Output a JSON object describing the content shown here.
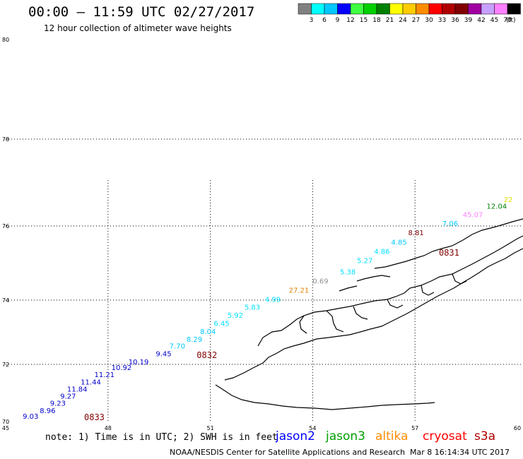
{
  "header": {
    "title": "00:00 – 11:59 UTC 02/27/2017",
    "subtitle": "12 hour collection of altimeter wave heights"
  },
  "colorbar": {
    "unit_label": "(ft)",
    "bins": [
      {
        "label": "3",
        "color": "#808080"
      },
      {
        "label": "6",
        "color": "#00ffff"
      },
      {
        "label": "9",
        "color": "#00c8ff"
      },
      {
        "label": "12",
        "color": "#0000ff"
      },
      {
        "label": "15",
        "color": "#40ff40"
      },
      {
        "label": "18",
        "color": "#00d000"
      },
      {
        "label": "21",
        "color": "#008000"
      },
      {
        "label": "24",
        "color": "#ffff00"
      },
      {
        "label": "27",
        "color": "#ffcc00"
      },
      {
        "label": "30",
        "color": "#ff8c00"
      },
      {
        "label": "33",
        "color": "#ff0000"
      },
      {
        "label": "36",
        "color": "#b00000"
      },
      {
        "label": "39",
        "color": "#800000"
      },
      {
        "label": "42",
        "color": "#a000a0"
      },
      {
        "label": "45",
        "color": "#c8a0ff"
      },
      {
        "label": "70",
        "color": "#ff80ff"
      },
      {
        "label": "",
        "color": "#000000"
      }
    ]
  },
  "map": {
    "lat_labels": [
      "80",
      "78",
      "76",
      "74",
      "72",
      "70"
    ],
    "lon_labels": [
      "45",
      "48",
      "51",
      "54",
      "57",
      "60"
    ],
    "lat_range": [
      70,
      80
    ],
    "lon_range": [
      45,
      60
    ],
    "grid": "dotted",
    "time_labels": [
      {
        "text": "0833",
        "lon": 47.3,
        "lat": 70.05
      },
      {
        "text": "0832",
        "lon": 50.6,
        "lat": 72.2
      },
      {
        "text": "0831",
        "lon": 57.7,
        "lat": 75.2
      }
    ],
    "swh_points": [
      {
        "value": "9.03",
        "lon": 45.5,
        "lat": 70.1,
        "color": "#0000cc"
      },
      {
        "value": "8.96",
        "lon": 46.0,
        "lat": 70.3,
        "color": "#0000cc"
      },
      {
        "value": "9.23",
        "lon": 46.3,
        "lat": 70.55,
        "color": "#0000cc"
      },
      {
        "value": "9.27",
        "lon": 46.6,
        "lat": 70.8,
        "color": "#0000cc"
      },
      {
        "value": "11.84",
        "lon": 46.8,
        "lat": 71.05,
        "color": "#0000cc"
      },
      {
        "value": "11.44",
        "lon": 47.2,
        "lat": 71.3,
        "color": "#0000cc"
      },
      {
        "value": "11.21",
        "lon": 47.6,
        "lat": 71.55,
        "color": "#0000cc"
      },
      {
        "value": "10.92",
        "lon": 48.1,
        "lat": 71.8,
        "color": "#0000cc"
      },
      {
        "value": "10.19",
        "lon": 48.6,
        "lat": 72.0,
        "color": "#0000cc"
      },
      {
        "value": "9.45",
        "lon": 49.4,
        "lat": 72.25,
        "color": "#0000cc"
      },
      {
        "value": "7.70",
        "lon": 49.8,
        "lat": 72.5,
        "color": "#00c8ff"
      },
      {
        "value": "8.29",
        "lon": 50.3,
        "lat": 72.7,
        "color": "#00c8ff"
      },
      {
        "value": "8.04",
        "lon": 50.7,
        "lat": 72.95,
        "color": "#00c8ff"
      },
      {
        "value": "6.45",
        "lon": 51.1,
        "lat": 73.2,
        "color": "#00e0ff"
      },
      {
        "value": "5.92",
        "lon": 51.5,
        "lat": 73.45,
        "color": "#00e0ff"
      },
      {
        "value": "5.83",
        "lon": 52.0,
        "lat": 73.7,
        "color": "#00e0ff"
      },
      {
        "value": "4.99",
        "lon": 52.6,
        "lat": 73.95,
        "color": "#00e0ff"
      },
      {
        "value": "27.21",
        "lon": 53.3,
        "lat": 74.2,
        "color": "#e08000"
      },
      {
        "value": "0.69",
        "lon": 54.0,
        "lat": 74.45,
        "color": "#909090"
      },
      {
        "value": "5.38",
        "lon": 54.8,
        "lat": 74.7,
        "color": "#00e0ff"
      },
      {
        "value": "5.27",
        "lon": 55.3,
        "lat": 75.0,
        "color": "#00e0ff"
      },
      {
        "value": "4.86",
        "lon": 55.8,
        "lat": 75.25,
        "color": "#00e0ff"
      },
      {
        "value": "4.85",
        "lon": 56.3,
        "lat": 75.5,
        "color": "#00c8ff"
      },
      {
        "value": "8.81",
        "lon": 56.8,
        "lat": 75.75,
        "color": "#800000"
      },
      {
        "value": "7.06",
        "lon": 57.8,
        "lat": 76.0,
        "color": "#00c8ff"
      },
      {
        "value": "45.07",
        "lon": 58.4,
        "lat": 76.2,
        "color": "#ff80ff"
      },
      {
        "value": "12.04",
        "lon": 59.1,
        "lat": 76.4,
        "color": "#008000"
      },
      {
        "value": "22",
        "lon": 59.6,
        "lat": 76.55,
        "color": "#e0e000"
      }
    ]
  },
  "footer": {
    "note": "note:  1) Time is in UTC;  2) SWH is in feet",
    "satellites": [
      {
        "name": "jason2",
        "color": "#0000ff"
      },
      {
        "name": "jason3",
        "color": "#00a000"
      },
      {
        "name": "altika",
        "color": "#ff8c00"
      },
      {
        "name": "cryosat",
        "color": "#ff0000"
      },
      {
        "name": "s3a",
        "color": "#b00000"
      }
    ],
    "credit": "NOAA/NESDIS Center for Satellite Applications and Research",
    "timestamp": "Mar  8 16:14:34 UTC 2017"
  }
}
